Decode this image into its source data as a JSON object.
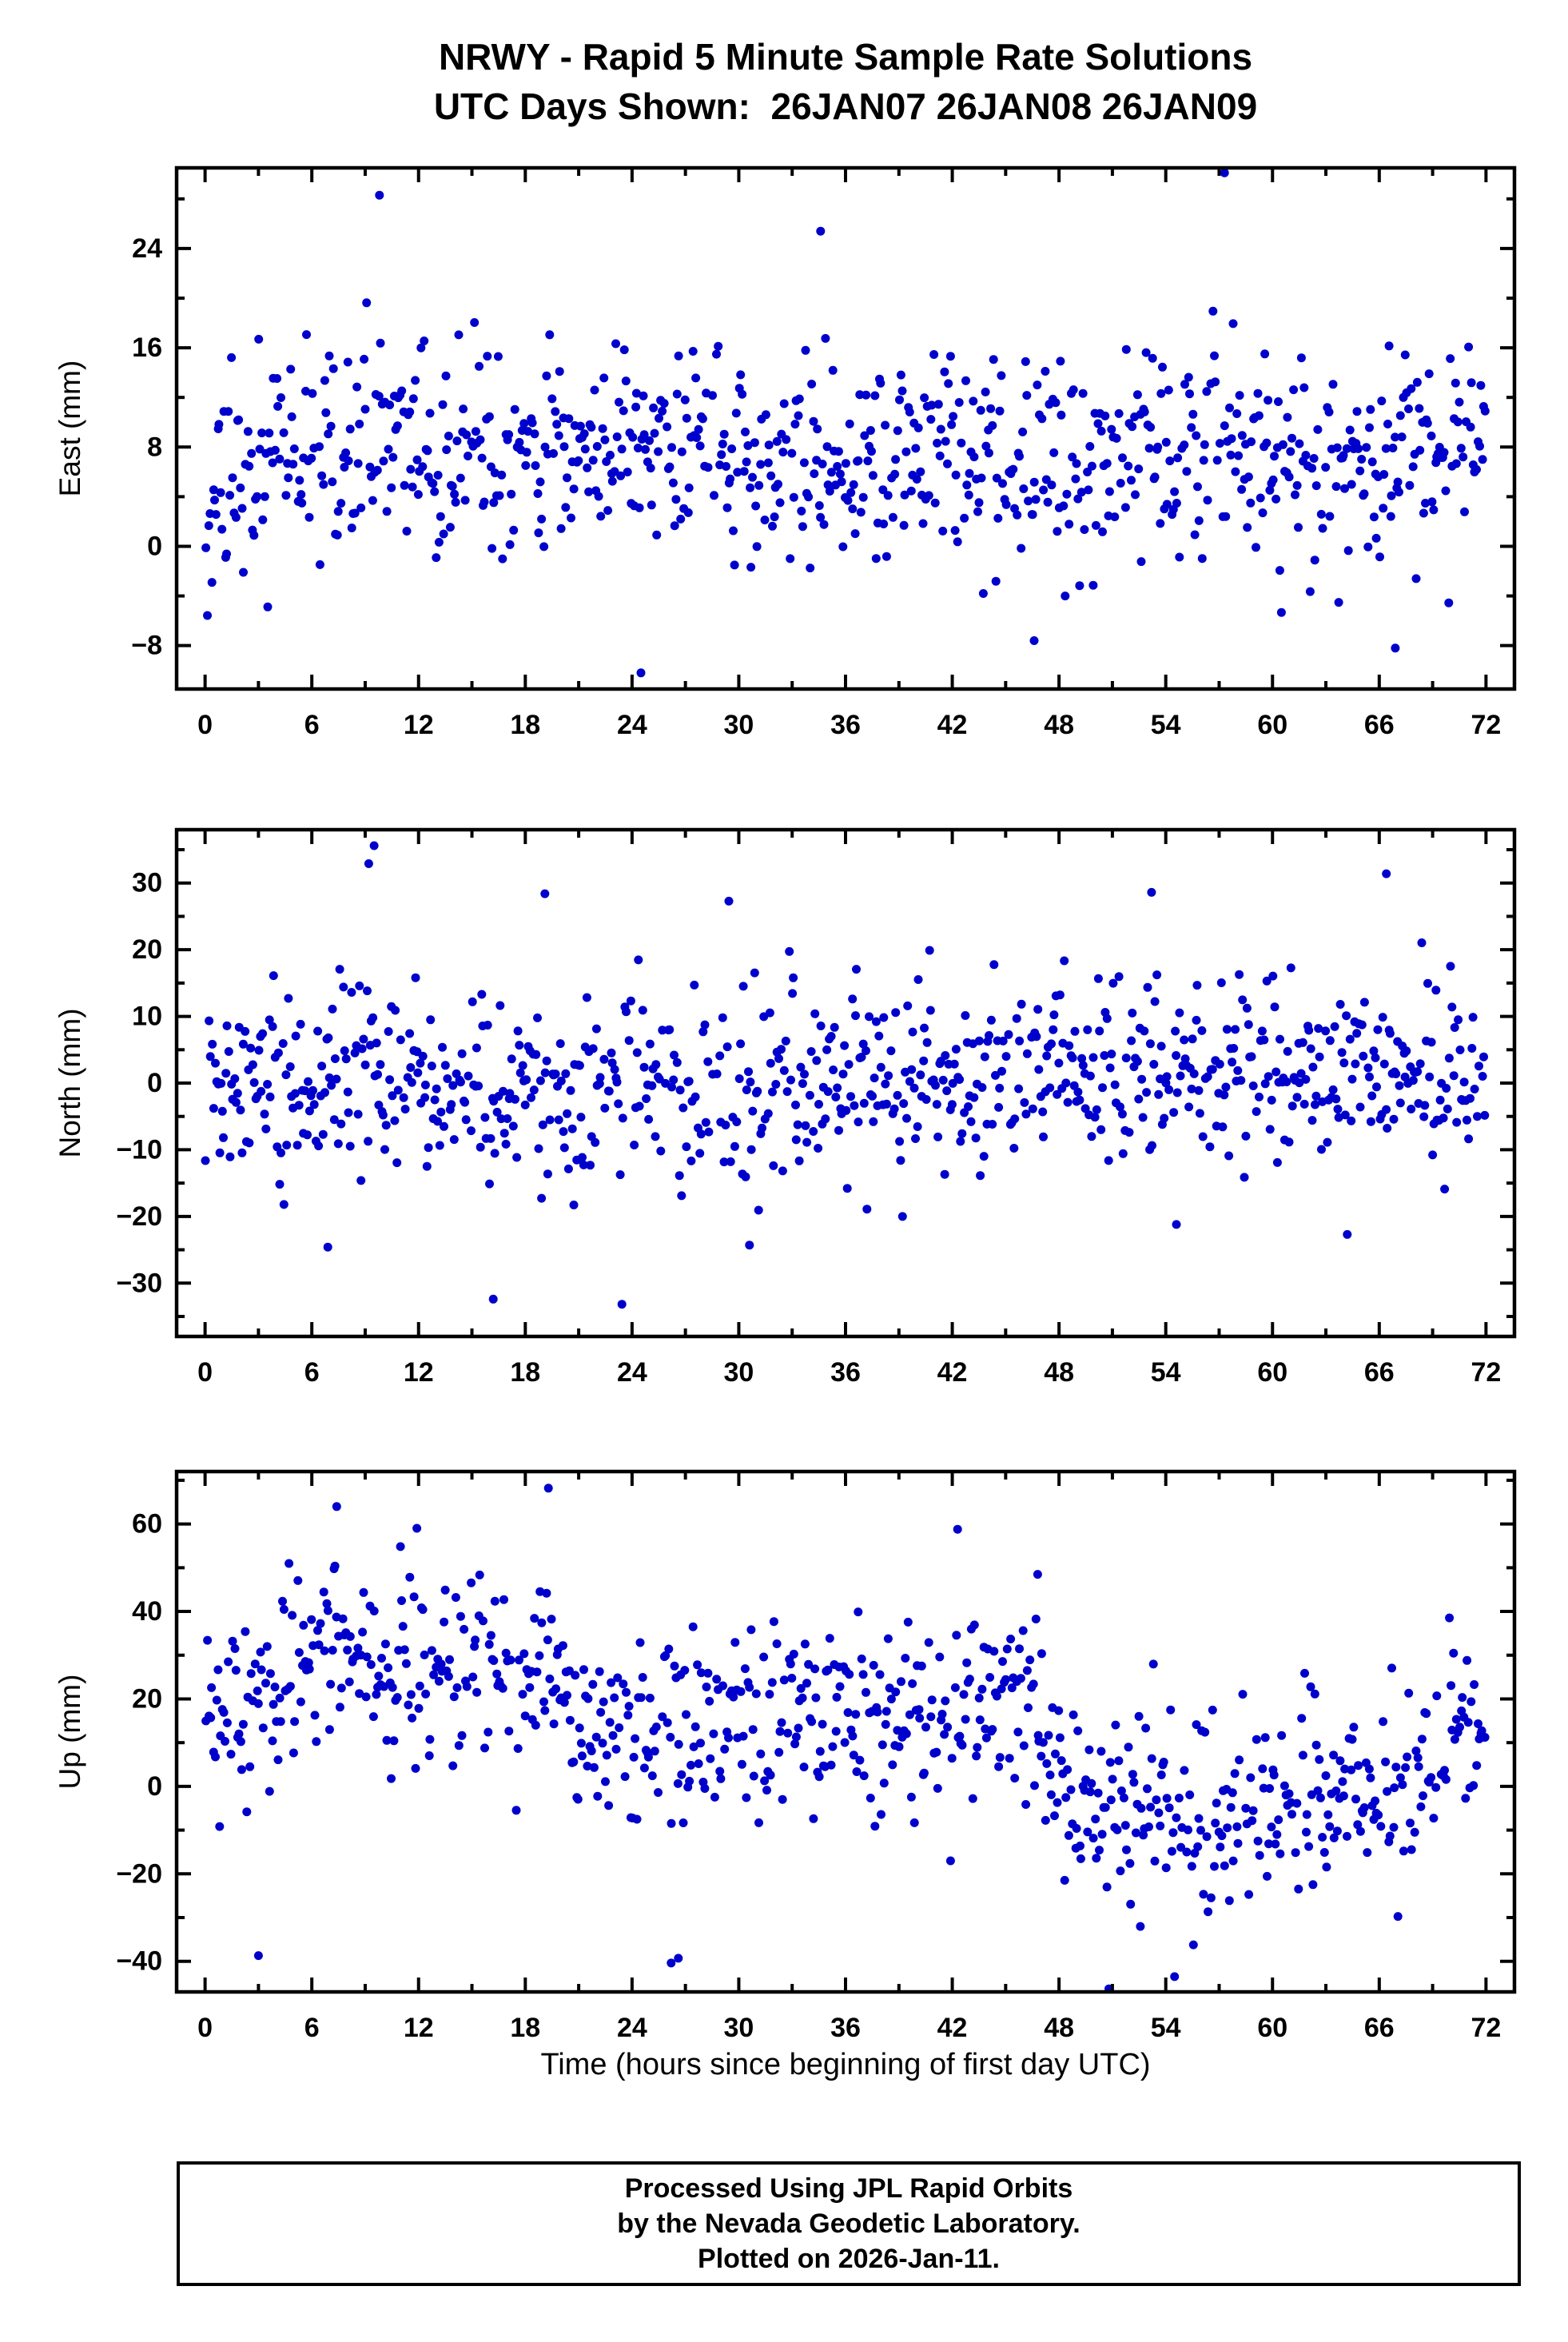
{
  "title": {
    "line1": "NRWY - Rapid 5 Minute Sample Rate Solutions",
    "line2": "UTC Days Shown:  26JAN07 26JAN08 26JAN09"
  },
  "xlabel": "Time (hours since beginning of first day UTC)",
  "footer": {
    "line1": "Processed Using JPL Rapid Orbits",
    "line2": "by the Nevada Geodetic Laboratory.",
    "line3": "Plotted on 2026-Jan-11."
  },
  "style": {
    "point_color": "#0000CC",
    "axis_color": "#000000",
    "background": "#FFFFFF"
  },
  "chart_data": [
    {
      "type": "scatter",
      "panel": "east",
      "ylabel": "East (mm)",
      "xlim": [
        -1.6,
        73.6
      ],
      "ylim": [
        -11.5,
        30.5
      ],
      "xticks": [
        0,
        6,
        12,
        18,
        24,
        30,
        36,
        42,
        48,
        54,
        60,
        66,
        72
      ],
      "yticks": [
        -8,
        0,
        8,
        16,
        24
      ],
      "x_minor_step": 3,
      "y_minor_step": 4,
      "n_points": 850,
      "skip_prob": 0.05,
      "seed": 11,
      "sd": 4.2,
      "tail_prob": 0.03,
      "tail_mult": 1.7,
      "trend": [
        [
          0,
          3.5
        ],
        [
          2,
          6.5
        ],
        [
          6,
          8
        ],
        [
          24,
          7.2
        ],
        [
          48,
          7.0
        ],
        [
          72,
          7.2
        ]
      ],
      "outliers": [
        [
          9.8,
          28.3
        ],
        [
          57.3,
          30.1
        ],
        [
          34.6,
          25.4
        ],
        [
          24.5,
          -10.2
        ],
        [
          66.9,
          -8.2
        ],
        [
          46.6,
          -7.6
        ]
      ]
    },
    {
      "type": "scatter",
      "panel": "north",
      "ylabel": "North (mm)",
      "xlim": [
        -1.6,
        73.6
      ],
      "ylim": [
        -38,
        38
      ],
      "xticks": [
        0,
        6,
        12,
        18,
        24,
        30,
        36,
        42,
        48,
        54,
        60,
        66,
        72
      ],
      "yticks": [
        -30,
        -20,
        -10,
        0,
        10,
        20,
        30
      ],
      "x_minor_step": 3,
      "y_minor_step": 5,
      "n_points": 850,
      "skip_prob": 0.05,
      "seed": 23,
      "sd": 6.8,
      "tail_prob": 0.03,
      "tail_mult": 1.7,
      "trend": [
        [
          0,
          -1
        ],
        [
          10,
          0
        ],
        [
          16,
          -2
        ],
        [
          24,
          -1
        ],
        [
          36,
          -0.5
        ],
        [
          48,
          0.5
        ],
        [
          56,
          2.5
        ],
        [
          66,
          2.5
        ],
        [
          72,
          1.5
        ]
      ],
      "outliers": [
        [
          9.5,
          35.6
        ],
        [
          9.2,
          32.9
        ],
        [
          19.1,
          28.4
        ],
        [
          53.2,
          28.6
        ],
        [
          66.4,
          31.4
        ],
        [
          16.2,
          -32.4
        ],
        [
          6.9,
          -24.6
        ],
        [
          30.6,
          -24.3
        ],
        [
          54.6,
          -21.2
        ],
        [
          64.2,
          -22.7
        ]
      ]
    },
    {
      "type": "scatter",
      "panel": "up",
      "ylabel": "Up (mm)",
      "xlim": [
        -1.6,
        73.6
      ],
      "ylim": [
        -47,
        72
      ],
      "xticks": [
        0,
        6,
        12,
        18,
        24,
        30,
        36,
        42,
        48,
        54,
        60,
        66,
        72
      ],
      "yticks": [
        -40,
        -20,
        0,
        20,
        40,
        60
      ],
      "x_minor_step": 3,
      "y_minor_step": 10,
      "n_points": 850,
      "skip_prob": 0.05,
      "seed": 37,
      "sd": 10.5,
      "tail_prob": 0.03,
      "tail_mult": 1.6,
      "trend": [
        [
          0,
          14
        ],
        [
          2,
          22
        ],
        [
          5,
          27
        ],
        [
          9,
          30
        ],
        [
          13,
          30
        ],
        [
          17,
          29
        ],
        [
          19,
          26
        ],
        [
          21,
          12
        ],
        [
          24,
          13
        ],
        [
          27,
          12
        ],
        [
          31,
          16
        ],
        [
          35,
          15
        ],
        [
          39,
          14
        ],
        [
          42,
          16
        ],
        [
          44,
          20
        ],
        [
          46,
          20
        ],
        [
          47.5,
          8
        ],
        [
          49,
          -4
        ],
        [
          52,
          -7
        ],
        [
          56,
          -9
        ],
        [
          59,
          -4
        ],
        [
          62,
          -2
        ],
        [
          65,
          -3
        ],
        [
          68,
          2
        ],
        [
          70,
          6
        ],
        [
          72,
          10
        ]
      ],
      "outliers": [
        [
          19.3,
          68.2
        ],
        [
          7.4,
          64.0
        ],
        [
          42.3,
          58.8
        ],
        [
          46.8,
          48.5
        ],
        [
          50.8,
          -46.3
        ],
        [
          26.2,
          -40.4
        ],
        [
          26.6,
          -39.3
        ],
        [
          3.0,
          -38.7
        ]
      ]
    }
  ]
}
